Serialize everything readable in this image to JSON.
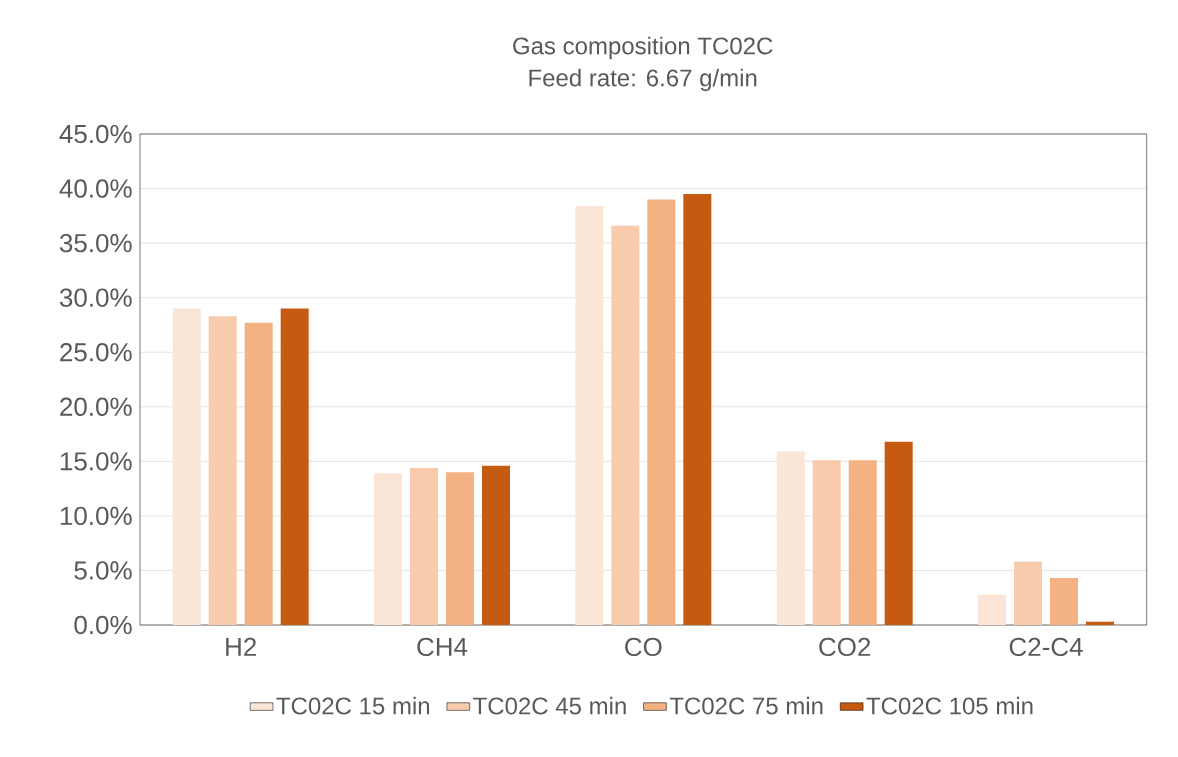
{
  "chart_data": {
    "type": "bar",
    "title": "Gas composition TC02C",
    "subtitle": "Feed rate: 6.67 g/min",
    "categories": [
      "H2",
      "CH4",
      "CO",
      "CO2",
      "C2-C4"
    ],
    "series": [
      {
        "name": "TC02C 15 min",
        "color": "#fbe5d6",
        "values": [
          29.0,
          13.9,
          38.4,
          15.9,
          2.8
        ]
      },
      {
        "name": "TC02C 45 min",
        "color": "#f8cbad",
        "values": [
          28.3,
          14.4,
          36.6,
          15.1,
          5.8
        ]
      },
      {
        "name": "TC02C 75 min",
        "color": "#f4b183",
        "values": [
          27.7,
          14.0,
          39.0,
          15.1,
          4.3
        ]
      },
      {
        "name": "TC02C 105 min",
        "color": "#c55a11",
        "values": [
          29.0,
          14.6,
          39.5,
          16.8,
          0.3
        ]
      }
    ],
    "ylim": [
      0,
      45
    ],
    "yticks": [
      {
        "value": 0,
        "label": "0.0%"
      },
      {
        "value": 5,
        "label": "5.0%"
      },
      {
        "value": 10,
        "label": "10.0%"
      },
      {
        "value": 15,
        "label": "15.0%"
      },
      {
        "value": 20,
        "label": "20.0%"
      },
      {
        "value": 25,
        "label": "25.0%"
      },
      {
        "value": 30,
        "label": "30.0%"
      },
      {
        "value": 35,
        "label": "35.0%"
      },
      {
        "value": 40,
        "label": "40.0%"
      },
      {
        "value": 45,
        "label": "45.0%"
      }
    ],
    "grid": "y",
    "legend": "bottom"
  }
}
